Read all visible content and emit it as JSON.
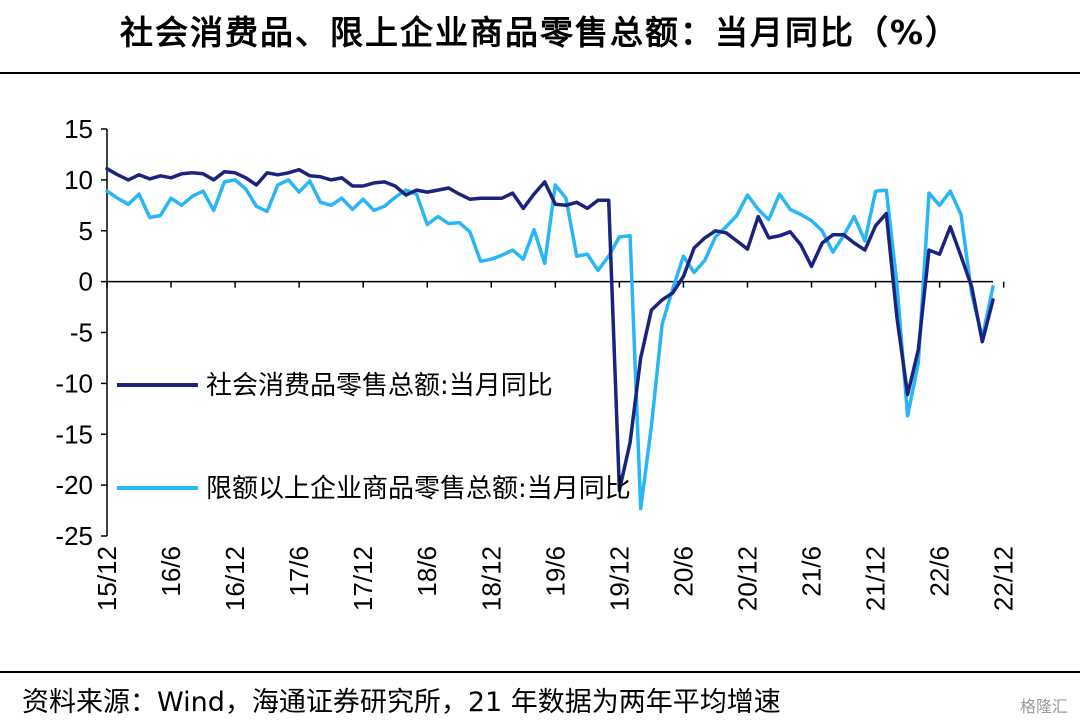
{
  "title": "社会消费品、限上企业商品零售总额：当月同比（%）",
  "source": "资料来源：Wind，海通证券研究所，21 年数据为两年平均增速",
  "watermark": "格隆汇",
  "chart_data": {
    "type": "line",
    "title": "社会消费品、限上企业商品零售总额：当月同比（%）",
    "ylim": [
      -25,
      15
    ],
    "yticks": [
      15,
      10,
      5,
      0,
      -5,
      -10,
      -15,
      -20,
      -25
    ],
    "x_start": "15/12",
    "x_end": "22/12",
    "xticks": [
      "15/12",
      "16/6",
      "16/12",
      "17/6",
      "17/12",
      "18/6",
      "18/12",
      "19/6",
      "19/12",
      "20/6",
      "20/12",
      "21/6",
      "21/12",
      "22/6",
      "22/12"
    ],
    "legend_position": "left, inside plot",
    "series": [
      {
        "name": "社会消费品零售总额:当月同比",
        "color": "#1a237e",
        "values": [
          11.1,
          10.5,
          10.0,
          10.5,
          10.1,
          10.4,
          10.2,
          10.6,
          10.7,
          10.6,
          10.0,
          10.8,
          10.7,
          10.2,
          9.5,
          10.7,
          10.5,
          10.7,
          11.0,
          10.4,
          10.3,
          10.0,
          10.2,
          9.4,
          9.4,
          9.7,
          9.8,
          9.4,
          8.5,
          9.0,
          8.8,
          9.0,
          9.2,
          8.6,
          8.1,
          8.2,
          8.2,
          8.2,
          8.7,
          7.2,
          8.6,
          9.8,
          7.6,
          7.5,
          7.8,
          7.2,
          8.0,
          8.0,
          -20.5,
          -15.8,
          -7.5,
          -2.8,
          -1.8,
          -1.1,
          0.5,
          3.3,
          4.3,
          5.0,
          4.8,
          4.0,
          3.2,
          6.4,
          4.3,
          4.5,
          4.9,
          3.6,
          1.5,
          3.8,
          4.6,
          4.6,
          3.8,
          3.1,
          5.5,
          6.7,
          -3.5,
          -11.1,
          -6.7,
          3.1,
          2.7,
          5.4,
          2.5,
          -0.5,
          -5.9,
          -1.8
        ]
      },
      {
        "name": "限额以上企业商品零售总额:当月同比",
        "color": "#29b6f6",
        "values": [
          8.9,
          8.2,
          7.6,
          8.6,
          6.3,
          6.5,
          8.2,
          7.5,
          8.4,
          8.9,
          7.0,
          9.8,
          10.0,
          9.1,
          7.4,
          6.9,
          9.5,
          10.0,
          8.8,
          9.9,
          7.8,
          7.5,
          8.2,
          7.1,
          8.1,
          7.0,
          7.4,
          8.3,
          9.0,
          8.6,
          5.6,
          6.4,
          5.7,
          5.8,
          4.9,
          2.0,
          2.2,
          2.6,
          3.1,
          2.2,
          5.1,
          1.8,
          9.5,
          8.2,
          2.5,
          2.7,
          1.1,
          2.5,
          4.4,
          4.5,
          -22.3,
          -14.2,
          -4.2,
          -0.7,
          2.5,
          0.9,
          2.1,
          4.4,
          5.4,
          6.5,
          8.5,
          7.1,
          6.1,
          8.6,
          7.1,
          6.6,
          6.0,
          5.0,
          2.9,
          4.5,
          6.4,
          4.0,
          8.9,
          9.0,
          -0.2,
          -13.2,
          -8.0,
          8.7,
          7.5,
          8.9,
          6.6,
          -1.2,
          -5.5,
          -0.5
        ]
      }
    ]
  }
}
